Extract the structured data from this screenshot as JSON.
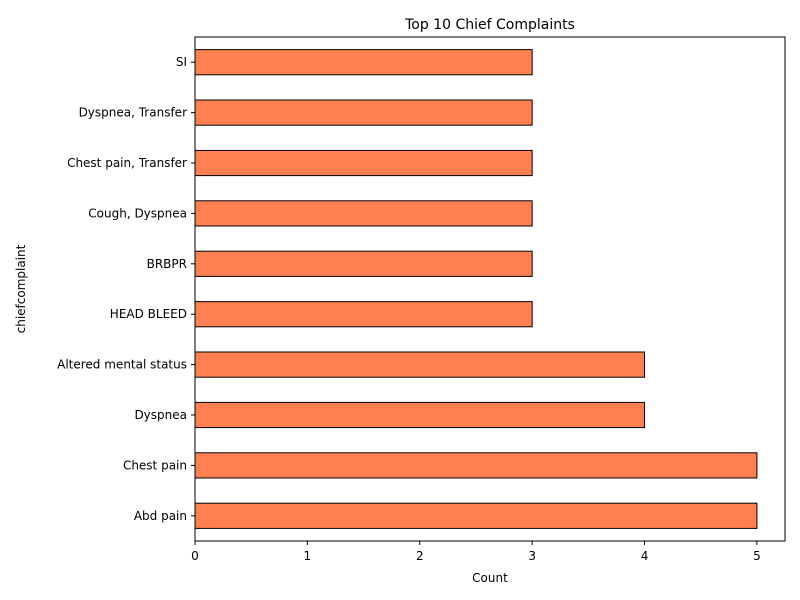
{
  "chart_data": {
    "type": "bar",
    "orientation": "horizontal",
    "title": "Top 10 Chief Complaints",
    "xlabel": "Count",
    "ylabel": "chiefcomplaint",
    "categories": [
      "Abd pain",
      "Chest pain",
      "Dyspnea",
      "Altered mental status",
      "HEAD BLEED",
      "BRBPR",
      "Cough, Dyspnea",
      "Chest pain, Transfer",
      "Dyspnea, Transfer",
      "SI"
    ],
    "values": [
      5,
      5,
      4,
      4,
      3,
      3,
      3,
      3,
      3,
      3
    ],
    "xlim": [
      0,
      5.25
    ],
    "xticks": [
      "0",
      "1",
      "2",
      "3",
      "4",
      "5"
    ],
    "grid": false,
    "bar_color": "#ff7f50",
    "bar_edge_color": "#000000"
  }
}
